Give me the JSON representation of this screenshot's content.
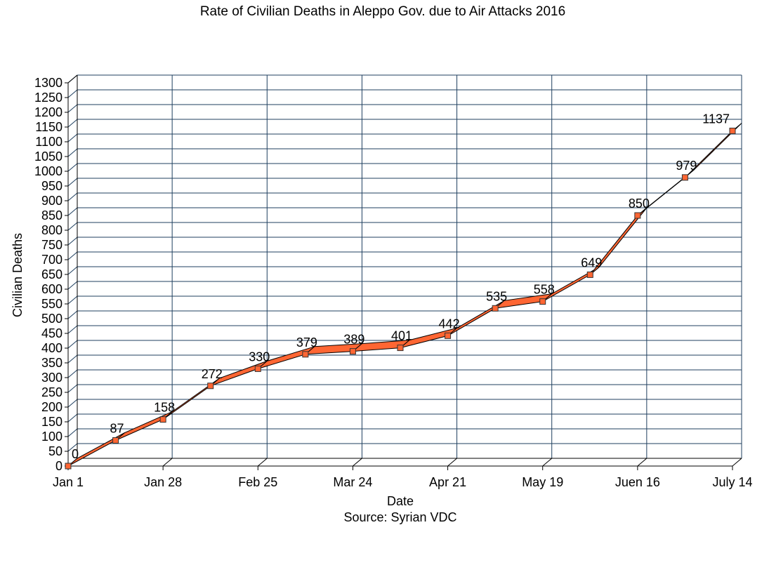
{
  "chart_data": {
    "type": "line",
    "title": "Rate of Civilian Deaths in Aleppo Gov. due to Air Attacks 2016",
    "xlabel": "Date",
    "ylabel": "Civilian Deaths",
    "source": "Source: Syrian VDC",
    "x_tick_labels": [
      "Jan 1",
      "Jan 28",
      "Feb 25",
      "Mar 24",
      "Apr 21",
      "May 19",
      "Juen 16",
      "July 14"
    ],
    "ylim": [
      0,
      1300
    ],
    "ytick_step": 50,
    "grid": true,
    "series": [
      {
        "values": [
          0,
          87,
          158,
          272,
          330,
          379,
          389,
          401,
          442,
          535,
          558,
          649,
          850,
          979,
          1137
        ],
        "color": "#ff6633",
        "marker_color": "#ff6633",
        "line_color": "#000000"
      }
    ],
    "style": {
      "grid_color": "#1f3f5f",
      "axis_color": "#000000"
    }
  }
}
